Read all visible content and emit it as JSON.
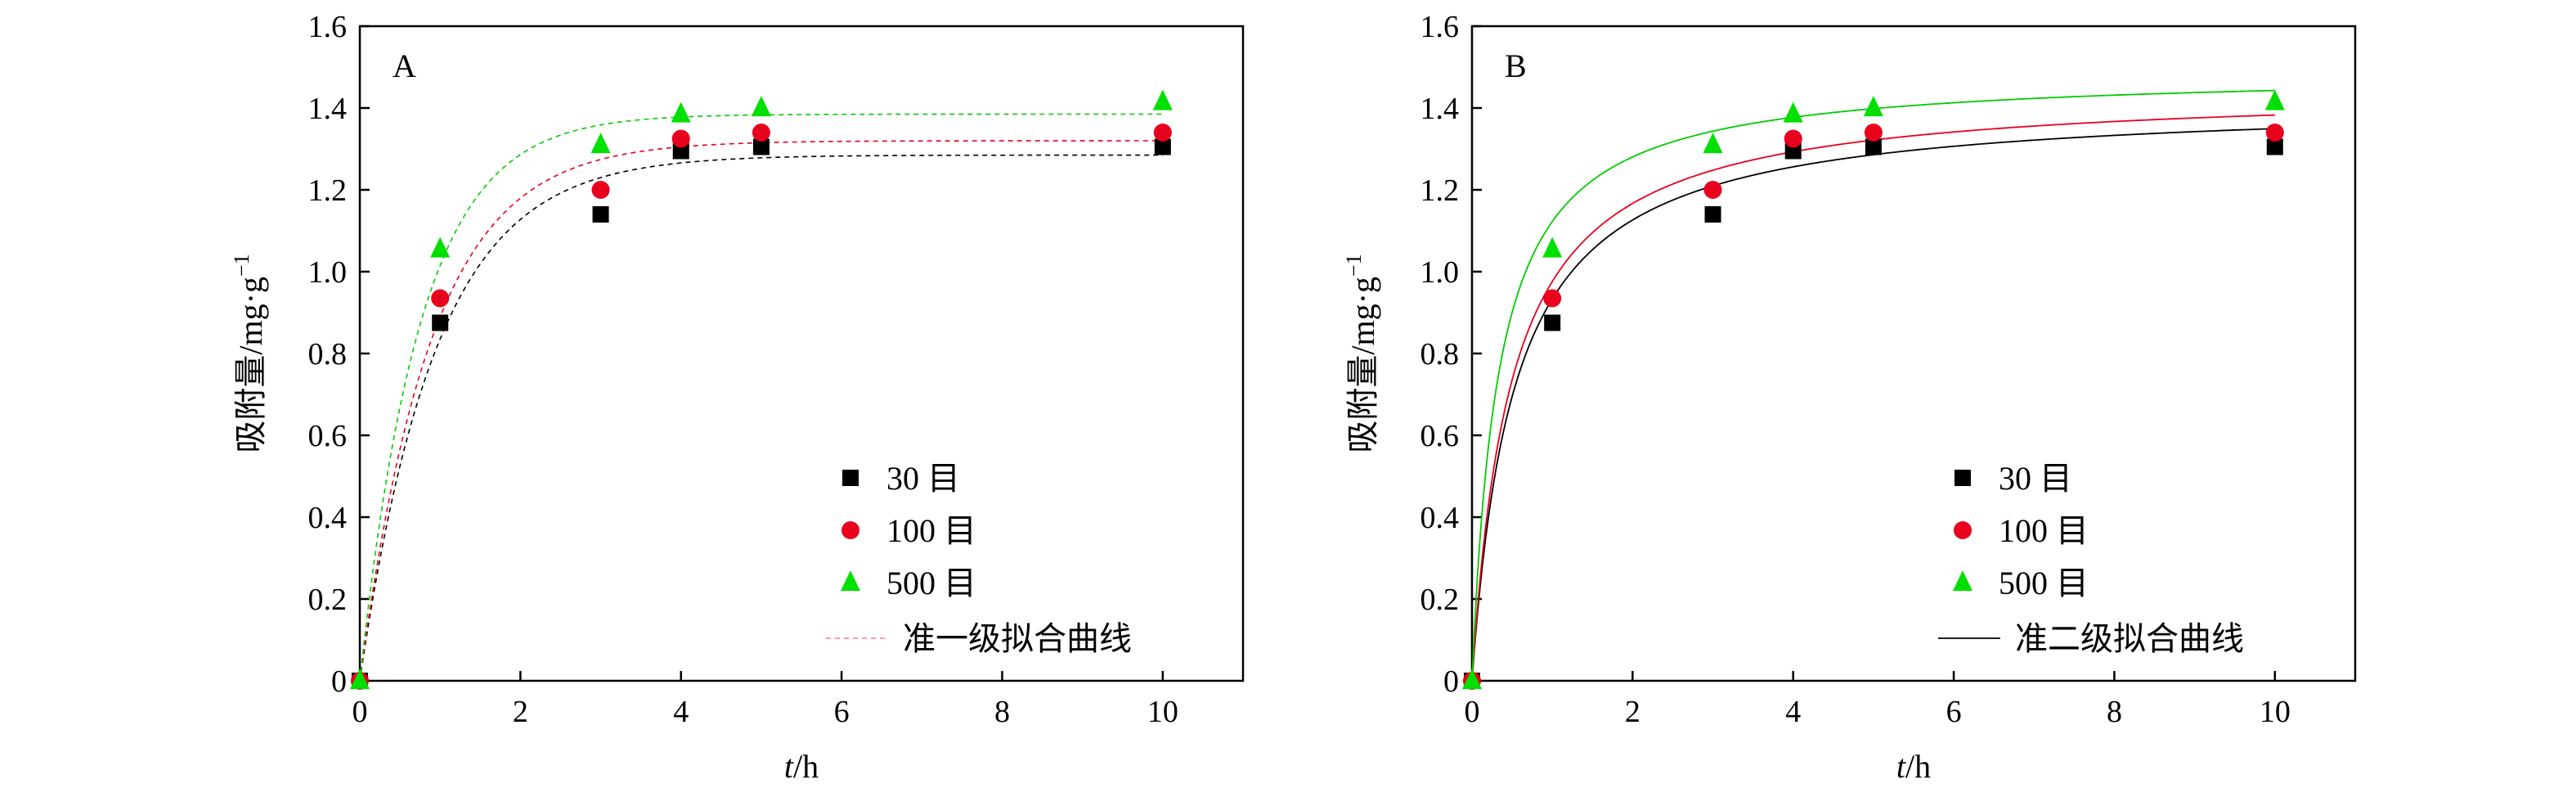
{
  "chart_data": [
    {
      "panel_label": "A",
      "type": "scatter",
      "xlabel_italic": "t",
      "xlabel_unit": "/h",
      "ylabel": "吸附量/mg·g",
      "ylabel_sup": "−1",
      "xlim": [
        0,
        11
      ],
      "ylim": [
        0,
        1.6
      ],
      "xticks": [
        0,
        2,
        4,
        6,
        8,
        10
      ],
      "xtick_labels": [
        "0",
        "2",
        "4",
        "6",
        "8",
        "10"
      ],
      "yticks": [
        0,
        0.2,
        0.4,
        0.6,
        0.8,
        1.0,
        1.2,
        1.4,
        1.6
      ],
      "ytick_labels": [
        "0",
        "0.2",
        "0.4",
        "0.6",
        "0.8",
        "1.0",
        "1.2",
        "1.4",
        "1.6"
      ],
      "legend_position": "lower-right",
      "series": [
        {
          "name": "30 目",
          "marker": "square",
          "color": "#000000",
          "x": [
            0,
            1,
            3,
            4,
            5,
            10
          ],
          "y": [
            0,
            0.875,
            1.14,
            1.295,
            1.305,
            1.305
          ]
        },
        {
          "name": "100 目",
          "marker": "circle",
          "color": "#e8001c",
          "x": [
            0,
            1,
            3,
            4,
            5,
            10
          ],
          "y": [
            0,
            0.935,
            1.2,
            1.325,
            1.34,
            1.34
          ]
        },
        {
          "name": "500 目",
          "marker": "triangle",
          "color": "#00e000",
          "x": [
            0,
            1,
            3,
            4,
            5,
            10
          ],
          "y": [
            0,
            1.055,
            1.31,
            1.385,
            1.4,
            1.415
          ]
        }
      ],
      "fit": {
        "name": "准一级拟合曲线",
        "model": "pseudo-first-order",
        "style": "dashed",
        "legend_color": "#ff8a9a",
        "curves": [
          {
            "series": "30 目",
            "color": "#000000",
            "qe": 1.285,
            "k": 1.05
          },
          {
            "series": "100 目",
            "color": "#e8001c",
            "qe": 1.32,
            "k": 1.12
          },
          {
            "series": "500 目",
            "color": "#00cc00",
            "qe": 1.385,
            "k": 1.32
          }
        ]
      }
    },
    {
      "panel_label": "B",
      "type": "scatter",
      "xlabel_italic": "t",
      "xlabel_unit": "/h",
      "ylabel": "吸附量/mg·g",
      "ylabel_sup": "−1",
      "xlim": [
        0,
        11
      ],
      "ylim": [
        0,
        1.6
      ],
      "xticks": [
        0,
        2,
        4,
        6,
        8,
        10
      ],
      "xtick_labels": [
        "0",
        "2",
        "4",
        "6",
        "8",
        "10"
      ],
      "yticks": [
        0,
        0.2,
        0.4,
        0.6,
        0.8,
        1.0,
        1.2,
        1.4,
        1.6
      ],
      "ytick_labels": [
        "0",
        "0.2",
        "0.4",
        "0.6",
        "0.8",
        "1.0",
        "1.2",
        "1.4",
        "1.6"
      ],
      "legend_position": "lower-right",
      "series": [
        {
          "name": "30 目",
          "marker": "square",
          "color": "#000000",
          "x": [
            0,
            1,
            3,
            4,
            5,
            10
          ],
          "y": [
            0,
            0.875,
            1.14,
            1.295,
            1.305,
            1.305
          ]
        },
        {
          "name": "100 目",
          "marker": "circle",
          "color": "#e8001c",
          "x": [
            0,
            1,
            3,
            4,
            5,
            10
          ],
          "y": [
            0,
            0.935,
            1.2,
            1.325,
            1.34,
            1.34
          ]
        },
        {
          "name": "500 目",
          "marker": "triangle",
          "color": "#00e000",
          "x": [
            0,
            1,
            3,
            4,
            5,
            10
          ],
          "y": [
            0,
            1.055,
            1.31,
            1.385,
            1.4,
            1.415
          ]
        }
      ],
      "fit": {
        "name": "准二级拟合曲线",
        "model": "pseudo-second-order",
        "style": "solid",
        "legend_color": "#000000",
        "curves": [
          {
            "series": "30 目",
            "color": "#000000",
            "qe": 1.42,
            "k": 1.35
          },
          {
            "series": "100 目",
            "color": "#e8001c",
            "qe": 1.45,
            "k": 1.42
          },
          {
            "series": "500 目",
            "color": "#00cc00",
            "qe": 1.49,
            "k": 2.05
          }
        ]
      }
    }
  ]
}
